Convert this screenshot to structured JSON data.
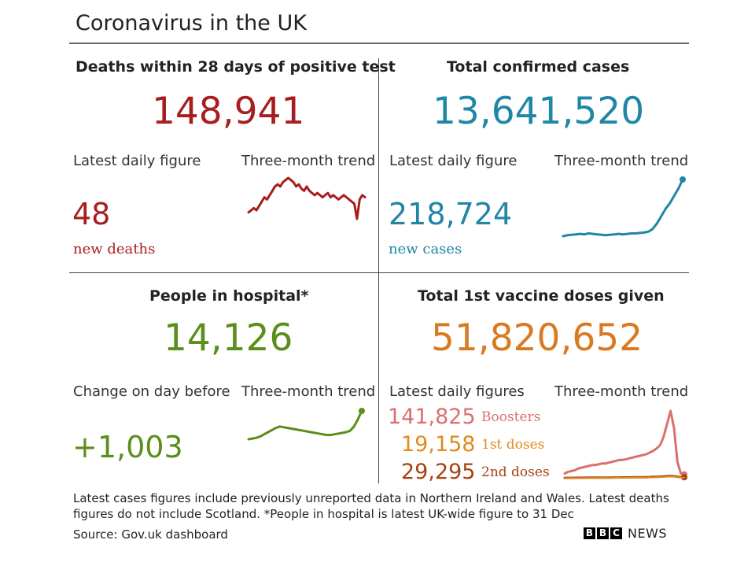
{
  "title": "Coronavirus in the UK",
  "colors": {
    "deaths": "#a81e1e",
    "cases": "#1f87a5",
    "hospital": "#5b8e1a",
    "vaccine": "#d97a21",
    "boosters": "#d9706f",
    "first": "#e08a1f",
    "second": "#a8420f"
  },
  "deaths": {
    "title": "Deaths within 28 days of positive test",
    "total": "148,941",
    "daily_label": "Latest daily figure",
    "trend_label": "Three-month trend",
    "daily": "48",
    "daily_unit": "new deaths"
  },
  "cases": {
    "title": "Total confirmed cases",
    "total": "13,641,520",
    "daily_label": "Latest daily figure",
    "trend_label": "Three-month trend",
    "daily": "218,724",
    "daily_unit": "new cases"
  },
  "hospital": {
    "title": "People in hospital*",
    "total": "14,126",
    "daily_label": "Change on day before",
    "trend_label": "Three-month trend",
    "daily": "+1,003"
  },
  "vaccine": {
    "title": "Total 1st vaccine doses given",
    "total": "51,820,652",
    "daily_label": "Latest daily figures",
    "trend_label": "Three-month trend",
    "boosters": "141,825",
    "boosters_label": "Boosters",
    "first": "19,158",
    "first_label": "1st doses",
    "second": "29,295",
    "second_label": "2nd doses"
  },
  "footnote": "Latest cases figures include previously unreported data in Northern Ireland and Wales. Latest deaths figures do not include Scotland. *People in hospital is latest UK-wide figure to 31 Dec",
  "source": "Source: Gov.uk dashboard",
  "logo": {
    "letters": [
      "B",
      "B",
      "C"
    ],
    "text": "NEWS"
  },
  "chart_data": [
    {
      "type": "line",
      "name": "deaths-trend",
      "values": [
        12,
        13,
        14,
        13,
        15,
        17,
        19,
        18,
        20,
        22,
        24,
        25,
        24,
        26,
        27,
        28,
        27,
        26,
        24,
        25,
        23,
        22,
        24,
        22,
        21,
        20,
        21,
        20,
        19,
        20,
        21,
        19,
        20,
        19,
        18,
        19,
        20,
        19,
        18,
        17,
        16,
        9,
        18,
        20,
        19
      ]
    },
    {
      "type": "line",
      "name": "cases-trend",
      "values": [
        8,
        9,
        9.5,
        10,
        10.5,
        10,
        11,
        10.5,
        10,
        9.5,
        9,
        9.5,
        10,
        10.5,
        10,
        10.5,
        11,
        11,
        11.5,
        12,
        13,
        16,
        22,
        30,
        38,
        44,
        52,
        60,
        70
      ]
    },
    {
      "type": "line",
      "name": "hospital-trend",
      "values": [
        6,
        6.5,
        7,
        8,
        9.5,
        11,
        12.5,
        14,
        15,
        14.5,
        14,
        13.5,
        13,
        12.5,
        12,
        11.5,
        11,
        10.5,
        10,
        9.5,
        9,
        9,
        9.5,
        10,
        10.5,
        11,
        12,
        15,
        20,
        26
      ]
    },
    {
      "type": "line",
      "name": "vaccine-trend",
      "series": [
        {
          "name": "Boosters",
          "values": [
            6,
            8,
            9,
            10,
            12,
            13,
            14,
            15,
            16,
            16,
            17,
            18,
            18,
            19,
            20,
            21,
            22,
            22,
            23,
            24,
            25,
            26,
            27,
            28,
            29,
            31,
            33,
            36,
            40,
            50,
            65,
            80,
            60,
            20,
            6,
            5
          ]
        },
        {
          "name": "1st doses",
          "values": [
            0.5,
            0.5,
            0.6,
            0.6,
            0.7,
            0.6,
            0.6,
            0.7,
            0.7,
            0.7,
            0.8,
            0.8,
            0.8,
            0.7,
            0.8,
            0.9,
            0.9,
            0.8,
            0.9,
            1.0,
            1.0,
            1.1,
            1.1,
            1.2,
            1.2,
            1.3,
            1.4,
            1.6,
            1.8,
            2.0,
            2.2,
            2.5,
            2.3,
            1.8,
            1.2,
            1.0
          ]
        },
        {
          "name": "2nd doses",
          "values": [
            0.8,
            0.8,
            0.9,
            0.9,
            1.0,
            1.0,
            1.0,
            1.1,
            1.1,
            1.1,
            1.2,
            1.2,
            1.2,
            1.2,
            1.3,
            1.3,
            1.3,
            1.4,
            1.4,
            1.5,
            1.5,
            1.6,
            1.6,
            1.7,
            1.8,
            1.9,
            2.0,
            2.1,
            2.3,
            2.6,
            2.9,
            3.2,
            2.8,
            2.2,
            1.8,
            1.6
          ]
        }
      ]
    }
  ]
}
